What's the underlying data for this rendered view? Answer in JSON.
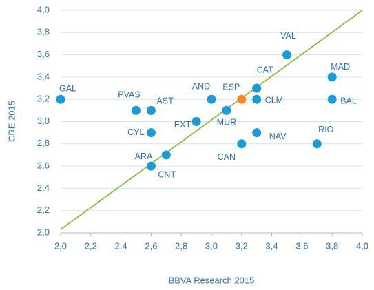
{
  "chart_data": {
    "type": "scatter",
    "xlabel": "BBVA Research 2015",
    "ylabel": "CRE 2015",
    "labels": [
      "GAL",
      "PVAS",
      "AST",
      "CYL",
      "ARA",
      "CNT",
      "EXT",
      "AND",
      "MUR",
      "ESP",
      "CAT",
      "CLM",
      "CAN",
      "NAV",
      "VAL",
      "MAD",
      "BAL",
      "RIO"
    ],
    "x": [
      2.0,
      2.5,
      2.6,
      2.6,
      2.7,
      2.6,
      2.9,
      3.0,
      3.1,
      3.2,
      3.3,
      3.3,
      3.2,
      3.3,
      3.5,
      3.8,
      3.8,
      3.7
    ],
    "values": [
      3.2,
      3.1,
      3.1,
      2.9,
      2.7,
      2.6,
      3.0,
      3.2,
      3.1,
      3.2,
      3.3,
      3.2,
      2.8,
      2.9,
      3.6,
      3.4,
      3.2,
      2.8
    ],
    "colors": [
      "#1a9ad6",
      "#1a9ad6",
      "#1a9ad6",
      "#1a9ad6",
      "#1a9ad6",
      "#1a9ad6",
      "#1a9ad6",
      "#1a9ad6",
      "#1a9ad6",
      "#f0882a",
      "#1a9ad6",
      "#1a9ad6",
      "#1a9ad6",
      "#1a9ad6",
      "#1a9ad6",
      "#1a9ad6",
      "#1a9ad6",
      "#1a9ad6"
    ],
    "reference_line": {
      "x": [
        2.0,
        4.0
      ],
      "values": [
        2.03,
        4.0
      ],
      "color": "#7cb82f"
    },
    "xlim": [
      2.0,
      4.0
    ],
    "ylim": [
      2.0,
      4.0
    ],
    "xticks": [
      {
        "value": 2.0,
        "label": "2,0"
      },
      {
        "value": 2.2,
        "label": "2,2"
      },
      {
        "value": 2.4,
        "label": "2,4"
      },
      {
        "value": 2.6,
        "label": "2,6"
      },
      {
        "value": 2.8,
        "label": "2,8"
      },
      {
        "value": 3.0,
        "label": "3,0"
      },
      {
        "value": 3.2,
        "label": "3,2"
      },
      {
        "value": 3.4,
        "label": "3,4"
      },
      {
        "value": 3.6,
        "label": "3,6"
      },
      {
        "value": 3.8,
        "label": "3,8"
      },
      {
        "value": 4.0,
        "label": "4,0"
      }
    ],
    "yticks": [
      {
        "value": 2.0,
        "label": "2,0"
      },
      {
        "value": 2.2,
        "label": "2,2"
      },
      {
        "value": 2.4,
        "label": "2,4"
      },
      {
        "value": 2.6,
        "label": "2,6"
      },
      {
        "value": 2.8,
        "label": "2,8"
      },
      {
        "value": 3.0,
        "label": "3,0"
      },
      {
        "value": 3.2,
        "label": "3,2"
      },
      {
        "value": 3.4,
        "label": "3,4"
      },
      {
        "value": 3.6,
        "label": "3,6"
      },
      {
        "value": 3.8,
        "label": "3,8"
      },
      {
        "value": 4.0,
        "label": "4,0"
      }
    ],
    "grid": true
  }
}
